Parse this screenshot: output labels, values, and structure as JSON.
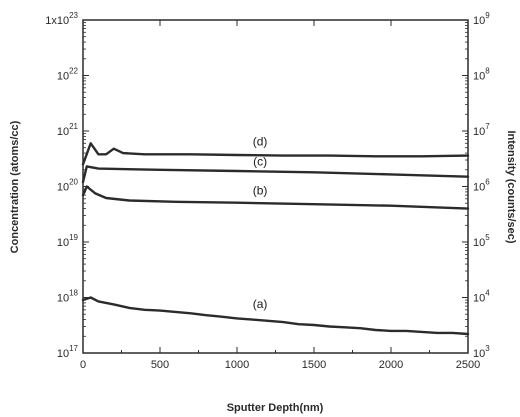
{
  "chart_data": {
    "type": "line",
    "x_label": "Sputter Depth(nm)",
    "y_left_label": "Concentration (atoms/cc)",
    "y_right_label": "Intensity (counts/sec)",
    "x_range": [
      0,
      2500
    ],
    "x_ticks": [
      "0",
      "500",
      "1000",
      "1500",
      "2000",
      "2500"
    ],
    "y_left_scale": "log",
    "y_left_range": [
      1e+17,
      1e+23
    ],
    "y_left_ticks": [
      {
        "mantissa": "",
        "exponent": "17"
      },
      {
        "mantissa": "",
        "exponent": "18"
      },
      {
        "mantissa": "",
        "exponent": "19"
      },
      {
        "mantissa": "",
        "exponent": "20"
      },
      {
        "mantissa": "",
        "exponent": "21"
      },
      {
        "mantissa": "",
        "exponent": "22"
      },
      {
        "mantissa": "1x",
        "exponent": "23"
      }
    ],
    "y_right_scale": "log",
    "y_right_range": [
      1000.0,
      1000000000.0
    ],
    "y_right_ticks": [
      {
        "exponent": "3"
      },
      {
        "exponent": "4"
      },
      {
        "exponent": "5"
      },
      {
        "exponent": "6"
      },
      {
        "exponent": "7"
      },
      {
        "exponent": "8"
      },
      {
        "exponent": "9"
      }
    ],
    "line_color": "#2b2b2b",
    "series": [
      {
        "name": "(d)",
        "points": [
          [
            0,
            2.5e+20
          ],
          [
            50,
            6e+20
          ],
          [
            100,
            3.8e+20
          ],
          [
            150,
            3.8e+20
          ],
          [
            200,
            4.8e+20
          ],
          [
            260,
            4e+20
          ],
          [
            400,
            3.8e+20
          ],
          [
            700,
            3.8e+20
          ],
          [
            1000,
            3.7e+20
          ],
          [
            1300,
            3.6e+20
          ],
          [
            1600,
            3.6e+20
          ],
          [
            1900,
            3.5e+20
          ],
          [
            2200,
            3.5e+20
          ],
          [
            2500,
            3.6e+20
          ]
        ]
      },
      {
        "name": "(c)",
        "points": [
          [
            0,
            1.2e+20
          ],
          [
            25,
            2.3e+20
          ],
          [
            100,
            2.1e+20
          ],
          [
            500,
            2e+20
          ],
          [
            1000,
            1.9e+20
          ],
          [
            1500,
            1.8e+20
          ],
          [
            2000,
            1.65e+20
          ],
          [
            2500,
            1.5e+20
          ]
        ]
      },
      {
        "name": "(b)",
        "points": [
          [
            0,
            7e+19
          ],
          [
            25,
            1e+20
          ],
          [
            80,
            7.5e+19
          ],
          [
            150,
            6.2e+19
          ],
          [
            300,
            5.6e+19
          ],
          [
            600,
            5.3e+19
          ],
          [
            1000,
            5.1e+19
          ],
          [
            1500,
            4.8e+19
          ],
          [
            2000,
            4.5e+19
          ],
          [
            2500,
            4e+19
          ]
        ]
      },
      {
        "name": "(a)",
        "points": [
          [
            0,
            9e+17
          ],
          [
            50,
            1e+18
          ],
          [
            100,
            8.5e+17
          ],
          [
            200,
            7.5e+17
          ],
          [
            300,
            6.5e+17
          ],
          [
            400,
            6e+17
          ],
          [
            500,
            5.8e+17
          ],
          [
            600,
            5.5e+17
          ],
          [
            700,
            5.2e+17
          ],
          [
            800,
            4.8e+17
          ],
          [
            900,
            4.5e+17
          ],
          [
            1000,
            4.2e+17
          ],
          [
            1100,
            4e+17
          ],
          [
            1200,
            3.8e+17
          ],
          [
            1300,
            3.6e+17
          ],
          [
            1400,
            3.3e+17
          ],
          [
            1500,
            3.2e+17
          ],
          [
            1600,
            3e+17
          ],
          [
            1700,
            2.9e+17
          ],
          [
            1800,
            2.8e+17
          ],
          [
            1900,
            2.6e+17
          ],
          [
            2000,
            2.5e+17
          ],
          [
            2100,
            2.5e+17
          ],
          [
            2200,
            2.4e+17
          ],
          [
            2300,
            2.3e+17
          ],
          [
            2400,
            2.3e+17
          ],
          [
            2500,
            2.2e+17
          ]
        ]
      }
    ],
    "series_label_positions": [
      {
        "text": "(d)",
        "x": 1150,
        "y": 5.5e+20
      },
      {
        "text": "(c)",
        "x": 1150,
        "y": 2.4e+20
      },
      {
        "text": "(b)",
        "x": 1150,
        "y": 7.2e+19
      },
      {
        "text": "(a)",
        "x": 1150,
        "y": 6.5e+17
      }
    ]
  }
}
